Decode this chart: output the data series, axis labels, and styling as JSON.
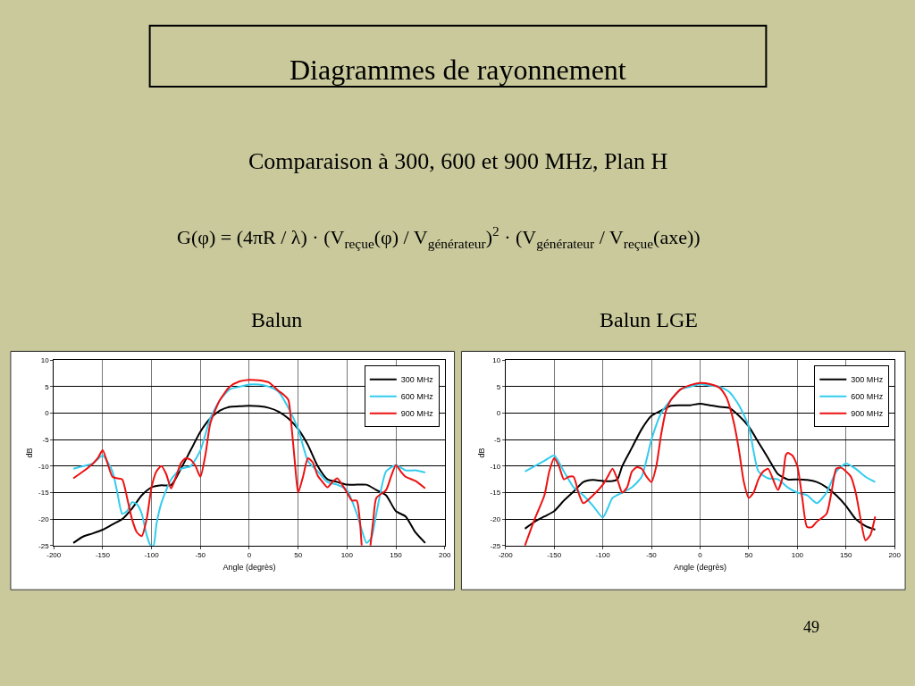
{
  "chart_data": [
    {
      "type": "line",
      "title": "Balun",
      "xlabel": "Angle (degrès)",
      "ylabel": "dB",
      "annotations": [
        "Diagrammes de rayonnement",
        "Comparaison à 300, 600 et 900 MHz, Plan H",
        "G(φ) = (4πR / λ) · (V$_{reçue}$(φ) / V$_{générateur}$)$^{2}$ · (V$_{générateur}$ / V$_{reçue}$(axe))",
        "49"
      ],
      "xlim": [
        -200,
        200
      ],
      "ylim": [
        -25,
        10
      ],
      "xticks": [
        -200,
        -150,
        -100,
        -50,
        0,
        50,
        100,
        150,
        200
      ],
      "yticks": [
        -25,
        -20,
        -15,
        -10,
        -5,
        0,
        5,
        10
      ],
      "grid": true,
      "legend": "top right",
      "line_style": "solid",
      "series": [
        {
          "name": "300 MHz",
          "color": "#000000",
          "x": [
            -180,
            -170,
            -160,
            -150,
            -140,
            -130,
            -120,
            -110,
            -100,
            -90,
            -80,
            -70,
            -60,
            -50,
            -40,
            -30,
            -20,
            -10,
            0,
            10,
            20,
            30,
            40,
            50,
            60,
            70,
            80,
            90,
            100,
            110,
            120,
            130,
            140,
            150,
            160,
            170,
            180
          ],
          "values": [
            -24.5,
            -23.3,
            -22.7,
            -22,
            -21,
            -20,
            -18,
            -15.5,
            -14,
            -13.6,
            -13.6,
            -10.5,
            -7,
            -3.5,
            -1,
            0.5,
            1.2,
            1.3,
            1.4,
            1.3,
            1,
            0.3,
            -1,
            -3,
            -6,
            -10,
            -12.5,
            -13,
            -13.5,
            -13.5,
            -13.5,
            -14.5,
            -15.5,
            -18.5,
            -19.5,
            -22.5,
            -24.5
          ]
        },
        {
          "name": "600 MHz",
          "color": "#33ccee",
          "x": [
            -180,
            -170,
            -160,
            -150,
            -140,
            -135,
            -130,
            -125,
            -120,
            -115,
            -110,
            -105,
            -101,
            -98,
            -95,
            -90,
            -80,
            -70,
            -60,
            -50,
            -40,
            -30,
            -20,
            -10,
            0,
            10,
            20,
            30,
            40,
            50,
            60,
            70,
            80,
            90,
            100,
            110,
            115,
            120,
            125,
            130,
            140,
            150,
            160,
            170,
            180
          ],
          "values": [
            -10.5,
            -10,
            -9.5,
            -8,
            -11,
            -15,
            -19,
            -18.5,
            -16.8,
            -17.2,
            -19,
            -23,
            -25,
            -25,
            -21,
            -17,
            -12.5,
            -10.5,
            -10,
            -7,
            -1,
            2.5,
            4.5,
            5,
            5.4,
            5.4,
            5,
            4,
            1,
            -3,
            -9,
            -11,
            -13,
            -13.5,
            -14.5,
            -19,
            -22,
            -24.5,
            -23.5,
            -19,
            -11,
            -9.8,
            -10.8,
            -10.8,
            -11.2
          ]
        },
        {
          "name": "900 MHz",
          "color": "#ee1111",
          "x": [
            -180,
            -170,
            -160,
            -155,
            -150,
            -145,
            -140,
            -135,
            -130,
            -125,
            -120,
            -115,
            -110,
            -105,
            -100,
            -95,
            -90,
            -85,
            -80,
            -75,
            -70,
            -65,
            -60,
            -55,
            -50,
            -45,
            -40,
            -35,
            -30,
            -20,
            -10,
            0,
            10,
            20,
            30,
            35,
            40,
            43,
            47,
            50,
            55,
            60,
            65,
            70,
            75,
            80,
            85,
            90,
            95,
            100,
            105,
            110,
            113,
            115,
            120,
            124,
            127,
            130,
            140,
            145,
            150,
            155,
            160,
            170,
            180
          ],
          "values": [
            -12.3,
            -11,
            -9.5,
            -8.5,
            -7,
            -9.5,
            -12,
            -12.3,
            -12.5,
            -16,
            -20,
            -22.5,
            -23.2,
            -20,
            -14,
            -11,
            -10,
            -11.5,
            -14.2,
            -12,
            -9.5,
            -8.5,
            -8.8,
            -10,
            -12,
            -8,
            -2,
            0.5,
            2.5,
            5,
            6,
            6.3,
            6.2,
            5.8,
            4.2,
            3.5,
            2.5,
            -2,
            -10,
            -15,
            -12,
            -8.5,
            -9.3,
            -11.8,
            -13,
            -14,
            -13,
            -12.3,
            -13.5,
            -15,
            -16.5,
            -16.5,
            -20,
            -25,
            null,
            -25,
            -20,
            -16,
            -14.5,
            -12,
            -9.8,
            -11,
            -12,
            -12.8,
            -14.2
          ]
        }
      ]
    },
    {
      "type": "line",
      "title": "Balun LGE",
      "xlabel": "Angle (degrès)",
      "ylabel": "dB",
      "xlim": [
        -200,
        200
      ],
      "ylim": [
        -25,
        10
      ],
      "xticks": [
        -200,
        -150,
        -100,
        -50,
        0,
        50,
        100,
        150,
        200
      ],
      "yticks": [
        -25,
        -20,
        -15,
        -10,
        -5,
        0,
        5,
        10
      ],
      "grid": true,
      "legend": "top right",
      "line_style": "solid",
      "series": [
        {
          "name": "300 MHz",
          "color": "#000000",
          "x": [
            -180,
            -170,
            -160,
            -150,
            -140,
            -130,
            -120,
            -110,
            -100,
            -90,
            -85,
            -80,
            -70,
            -60,
            -50,
            -40,
            -30,
            -20,
            -10,
            0,
            10,
            20,
            30,
            40,
            50,
            60,
            70,
            80,
            90,
            100,
            110,
            120,
            130,
            140,
            150,
            160,
            170,
            180
          ],
          "values": [
            -21.8,
            -20.5,
            -19.5,
            -18.5,
            -16.5,
            -14.8,
            -13,
            -12.6,
            -12.8,
            -12.8,
            -12.5,
            -10,
            -6.5,
            -3,
            -0.5,
            0.5,
            1.4,
            1.5,
            1.5,
            1.8,
            1.5,
            1.2,
            1,
            -0.5,
            -2.5,
            -5.5,
            -8.5,
            -11.5,
            -12.5,
            -12.5,
            -12.6,
            -13,
            -14,
            -15.5,
            -17.5,
            -20,
            -21.3,
            -22
          ]
        },
        {
          "name": "600 MHz",
          "color": "#33ccee",
          "x": [
            -180,
            -170,
            -160,
            -150,
            -140,
            -130,
            -120,
            -110,
            -100,
            -95,
            -90,
            -80,
            -70,
            -60,
            -50,
            -40,
            -30,
            -20,
            -10,
            0,
            10,
            20,
            30,
            40,
            50,
            60,
            70,
            80,
            90,
            100,
            110,
            120,
            130,
            140,
            150,
            160,
            170,
            180
          ],
          "values": [
            -11,
            -10,
            -9,
            -8,
            -11,
            -14,
            -15.5,
            -17.5,
            -19.7,
            -18,
            -16,
            -15,
            -14,
            -12,
            -5,
            0,
            2.5,
            4.5,
            5,
            5.5,
            5.2,
            5,
            4,
            1.5,
            -2.5,
            -11,
            -12.3,
            -12.5,
            -14,
            -15,
            -15.5,
            -17,
            -15,
            -11,
            -9.5,
            -10.5,
            -12,
            -13
          ]
        },
        {
          "name": "900 MHz",
          "color": "#ee1111",
          "x": [
            -180,
            -170,
            -160,
            -155,
            -150,
            -145,
            -140,
            -135,
            -130,
            -125,
            -120,
            -110,
            -100,
            -95,
            -90,
            -85,
            -80,
            -75,
            -70,
            -65,
            -60,
            -55,
            -50,
            -45,
            -40,
            -35,
            -30,
            -20,
            -10,
            0,
            10,
            20,
            27,
            30,
            35,
            40,
            45,
            50,
            55,
            60,
            65,
            70,
            75,
            80,
            85,
            88,
            90,
            95,
            100,
            105,
            110,
            115,
            120,
            130,
            135,
            140,
            145,
            150,
            155,
            160,
            165,
            170,
            175,
            180
          ],
          "values": [
            -25,
            -20,
            -15.5,
            -11,
            -8.5,
            -10,
            -12.5,
            -12,
            -12,
            -15,
            -17,
            -15.5,
            -13.5,
            -12,
            -10.5,
            -12.5,
            -15,
            -14,
            -11,
            -10.2,
            -10.5,
            -12,
            -13,
            -10,
            -4,
            0.5,
            2.5,
            4.5,
            5.3,
            5.7,
            5.5,
            4.8,
            3,
            1.5,
            -2,
            -7,
            -13,
            -16,
            -15,
            -12.5,
            -11,
            -10.5,
            -12.5,
            -14.5,
            -12,
            -8,
            -7.5,
            -8,
            -10,
            -16,
            -21.5,
            -21.5,
            -20.5,
            -19,
            -15,
            -10.5,
            -10.3,
            -11,
            -12,
            -15,
            -20,
            -24,
            -23,
            -19.5
          ]
        }
      ]
    }
  ]
}
